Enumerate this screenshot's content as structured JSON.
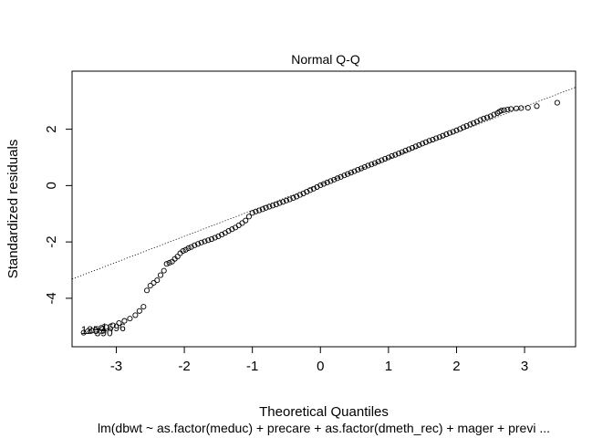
{
  "chart_data": {
    "type": "scatter",
    "title": "Normal Q-Q",
    "xlabel": "Theoretical Quantiles",
    "ylabel": "Standardized residuals",
    "subtitle": "lm(dbwt ~ as.factor(meduc) + precare + as.factor(dmeth_rec) + mager + previ ...",
    "xlim": [
      -3.65,
      3.75
    ],
    "ylim": [
      -5.72,
      4.06
    ],
    "x_ticks": [
      -3,
      -2,
      -1,
      0,
      1,
      2,
      3
    ],
    "y_ticks": [
      -4,
      -2,
      0,
      2
    ],
    "grid": false,
    "marker": "open-circle",
    "colors": {
      "points": "#000000",
      "reference_line": "#000000",
      "frame": "#000000"
    },
    "reference_line": {
      "style": "dotted",
      "intercept": 0.04,
      "slope": 0.92
    },
    "point_labels": [
      {
        "text": "1696",
        "x": -3.22,
        "y": -5.04
      },
      {
        "text": "1859",
        "x": -3.52,
        "y": -5.14
      },
      {
        "text": "390",
        "x": -3.32,
        "y": -5.22
      }
    ],
    "series": [
      {
        "values_xy": [
          [
            -3.48,
            -5.22
          ],
          [
            -3.42,
            -5.17
          ],
          [
            -3.36,
            -5.15
          ],
          [
            -3.3,
            -5.12
          ],
          [
            -3.22,
            -5.05
          ],
          [
            -3.15,
            -5.02
          ],
          [
            -3.05,
            -4.96
          ],
          [
            -2.96,
            -4.88
          ],
          [
            -2.88,
            -4.8
          ],
          [
            -2.8,
            -4.72
          ],
          [
            -2.72,
            -4.6
          ],
          [
            -2.66,
            -4.45
          ],
          [
            -2.6,
            -4.3
          ],
          [
            -2.55,
            -3.72
          ],
          [
            -2.5,
            -3.55
          ],
          [
            -2.45,
            -3.45
          ],
          [
            -2.4,
            -3.36
          ],
          [
            -2.35,
            -3.18
          ],
          [
            -2.3,
            -3.02
          ],
          [
            -2.26,
            -2.78
          ],
          [
            -2.22,
            -2.74
          ],
          [
            -2.18,
            -2.7
          ],
          [
            -2.14,
            -2.6
          ],
          [
            -2.1,
            -2.52
          ],
          [
            -2.06,
            -2.4
          ],
          [
            -2.02,
            -2.32
          ],
          [
            -1.98,
            -2.28
          ],
          [
            -1.94,
            -2.22
          ],
          [
            -1.9,
            -2.18
          ],
          [
            -1.85,
            -2.12
          ],
          [
            -1.8,
            -2.07
          ],
          [
            -1.75,
            -2.02
          ],
          [
            -1.7,
            -1.98
          ],
          [
            -1.65,
            -1.94
          ],
          [
            -1.6,
            -1.9
          ],
          [
            -1.55,
            -1.85
          ],
          [
            -1.5,
            -1.8
          ],
          [
            -1.45,
            -1.74
          ],
          [
            -1.4,
            -1.68
          ],
          [
            -1.35,
            -1.61
          ],
          [
            -1.3,
            -1.55
          ],
          [
            -1.25,
            -1.49
          ],
          [
            -1.2,
            -1.41
          ],
          [
            -1.15,
            -1.33
          ],
          [
            -1.1,
            -1.24
          ],
          [
            -1.05,
            -1.1
          ],
          [
            -1.0,
            -0.97
          ],
          [
            -0.95,
            -0.92
          ],
          [
            -0.9,
            -0.88
          ],
          [
            -0.85,
            -0.84
          ],
          [
            -0.8,
            -0.79
          ],
          [
            -0.75,
            -0.75
          ],
          [
            -0.7,
            -0.71
          ],
          [
            -0.65,
            -0.67
          ],
          [
            -0.6,
            -0.62
          ],
          [
            -0.55,
            -0.58
          ],
          [
            -0.5,
            -0.53
          ],
          [
            -0.45,
            -0.49
          ],
          [
            -0.4,
            -0.44
          ],
          [
            -0.35,
            -0.39
          ],
          [
            -0.3,
            -0.33
          ],
          [
            -0.25,
            -0.28
          ],
          [
            -0.2,
            -0.22
          ],
          [
            -0.15,
            -0.16
          ],
          [
            -0.1,
            -0.11
          ],
          [
            -0.05,
            -0.05
          ],
          [
            0.0,
            0.01
          ],
          [
            0.05,
            0.06
          ],
          [
            0.1,
            0.11
          ],
          [
            0.15,
            0.16
          ],
          [
            0.2,
            0.21
          ],
          [
            0.25,
            0.26
          ],
          [
            0.3,
            0.31
          ],
          [
            0.35,
            0.36
          ],
          [
            0.4,
            0.41
          ],
          [
            0.45,
            0.46
          ],
          [
            0.5,
            0.51
          ],
          [
            0.55,
            0.56
          ],
          [
            0.6,
            0.61
          ],
          [
            0.65,
            0.66
          ],
          [
            0.7,
            0.71
          ],
          [
            0.75,
            0.75
          ],
          [
            0.8,
            0.8
          ],
          [
            0.85,
            0.85
          ],
          [
            0.9,
            0.9
          ],
          [
            0.95,
            0.95
          ],
          [
            1.0,
            1.0
          ],
          [
            1.05,
            1.05
          ],
          [
            1.1,
            1.09
          ],
          [
            1.15,
            1.14
          ],
          [
            1.2,
            1.19
          ],
          [
            1.25,
            1.24
          ],
          [
            1.3,
            1.29
          ],
          [
            1.35,
            1.34
          ],
          [
            1.4,
            1.39
          ],
          [
            1.45,
            1.44
          ],
          [
            1.5,
            1.49
          ],
          [
            1.55,
            1.54
          ],
          [
            1.6,
            1.59
          ],
          [
            1.65,
            1.63
          ],
          [
            1.7,
            1.68
          ],
          [
            1.75,
            1.72
          ],
          [
            1.8,
            1.77
          ],
          [
            1.85,
            1.82
          ],
          [
            1.9,
            1.87
          ],
          [
            1.95,
            1.91
          ],
          [
            2.0,
            1.96
          ],
          [
            2.05,
            2.01
          ],
          [
            2.1,
            2.07
          ],
          [
            2.15,
            2.12
          ],
          [
            2.2,
            2.17
          ],
          [
            2.25,
            2.22
          ],
          [
            2.3,
            2.27
          ],
          [
            2.35,
            2.33
          ],
          [
            2.4,
            2.38
          ],
          [
            2.45,
            2.42
          ],
          [
            2.5,
            2.46
          ],
          [
            2.55,
            2.52
          ],
          [
            2.6,
            2.57
          ],
          [
            2.63,
            2.62
          ],
          [
            2.66,
            2.66
          ],
          [
            2.7,
            2.68
          ],
          [
            2.75,
            2.7
          ],
          [
            2.8,
            2.72
          ],
          [
            2.88,
            2.74
          ],
          [
            2.95,
            2.75
          ],
          [
            3.05,
            2.76
          ],
          [
            3.18,
            2.82
          ],
          [
            3.48,
            2.94
          ]
        ]
      }
    ]
  }
}
